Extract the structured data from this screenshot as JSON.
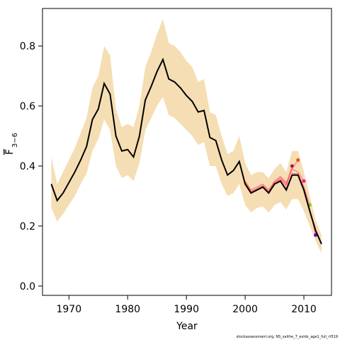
{
  "chart_data": {
    "type": "line",
    "xlabel": "Year",
    "ylabel_main": "F",
    "ylabel_sub": "3−6",
    "footnote": "stockassessment.org, NS_saithe_7_exidx_age1_full_rt519",
    "x": [
      1967,
      1968,
      1969,
      1970,
      1971,
      1972,
      1973,
      1974,
      1975,
      1976,
      1977,
      1978,
      1979,
      1980,
      1981,
      1982,
      1983,
      1984,
      1985,
      1986,
      1987,
      1988,
      1989,
      1990,
      1991,
      1992,
      1993,
      1994,
      1995,
      1996,
      1997,
      1998,
      1999,
      2000,
      2001,
      2002,
      2003,
      2004,
      2005,
      2006,
      2007,
      2008,
      2009,
      2010,
      2011,
      2012,
      2013
    ],
    "band_color": "#f5deb3",
    "band_upper": [
      0.43,
      0.34,
      0.38,
      0.42,
      0.46,
      0.51,
      0.56,
      0.66,
      0.7,
      0.8,
      0.77,
      0.59,
      0.53,
      0.54,
      0.53,
      0.6,
      0.73,
      0.78,
      0.84,
      0.89,
      0.81,
      0.8,
      0.78,
      0.75,
      0.73,
      0.68,
      0.69,
      0.58,
      0.57,
      0.5,
      0.44,
      0.45,
      0.5,
      0.41,
      0.37,
      0.38,
      0.38,
      0.36,
      0.39,
      0.41,
      0.38,
      0.45,
      0.45,
      0.38,
      0.3,
      0.22,
      0.17
    ],
    "band_lower": [
      0.26,
      0.215,
      0.24,
      0.27,
      0.3,
      0.34,
      0.375,
      0.45,
      0.49,
      0.555,
      0.52,
      0.4,
      0.36,
      0.37,
      0.35,
      0.41,
      0.52,
      0.56,
      0.6,
      0.63,
      0.57,
      0.56,
      0.54,
      0.52,
      0.5,
      0.47,
      0.48,
      0.4,
      0.4,
      0.34,
      0.3,
      0.31,
      0.34,
      0.27,
      0.245,
      0.26,
      0.265,
      0.245,
      0.27,
      0.28,
      0.255,
      0.29,
      0.29,
      0.25,
      0.2,
      0.15,
      0.11
    ],
    "series": [
      {
        "color": "#a0105a",
        "values": [
          null,
          null,
          null,
          null,
          null,
          null,
          null,
          null,
          null,
          null,
          null,
          null,
          null,
          null,
          null,
          null,
          null,
          null,
          null,
          null,
          null,
          null,
          null,
          null,
          null,
          null,
          null,
          null,
          null,
          null,
          null,
          null,
          null,
          0.345,
          0.315,
          0.325,
          0.335,
          0.315,
          0.345,
          0.36,
          0.34,
          0.4,
          null,
          null,
          null,
          null,
          null
        ]
      },
      {
        "color": "#ff4500",
        "values": [
          null,
          null,
          null,
          null,
          null,
          null,
          null,
          null,
          null,
          null,
          null,
          null,
          null,
          null,
          null,
          null,
          null,
          null,
          null,
          null,
          null,
          null,
          null,
          null,
          null,
          null,
          null,
          null,
          null,
          null,
          null,
          null,
          null,
          0.35,
          0.32,
          0.33,
          0.34,
          0.32,
          0.35,
          0.365,
          0.345,
          0.39,
          0.42,
          null,
          null,
          null,
          null
        ]
      },
      {
        "color": "#ff1493",
        "values": [
          null,
          null,
          null,
          null,
          null,
          null,
          null,
          null,
          null,
          null,
          null,
          null,
          null,
          null,
          null,
          null,
          null,
          null,
          null,
          null,
          null,
          null,
          null,
          null,
          null,
          null,
          null,
          null,
          null,
          null,
          null,
          null,
          null,
          0.345,
          0.315,
          0.325,
          0.335,
          0.315,
          0.345,
          0.355,
          0.335,
          0.39,
          0.38,
          0.35,
          null,
          null,
          null
        ]
      },
      {
        "color": "#7fd000",
        "values": [
          null,
          null,
          null,
          null,
          null,
          null,
          null,
          null,
          null,
          null,
          null,
          null,
          null,
          null,
          null,
          null,
          null,
          null,
          null,
          null,
          null,
          null,
          null,
          null,
          null,
          null,
          null,
          null,
          null,
          null,
          null,
          null,
          null,
          0.34,
          0.31,
          0.32,
          0.33,
          0.31,
          0.34,
          0.35,
          0.325,
          0.375,
          0.375,
          0.33,
          0.27,
          null,
          null
        ]
      },
      {
        "color": "#5a00c8",
        "values": [
          null,
          null,
          null,
          null,
          null,
          null,
          null,
          null,
          null,
          null,
          null,
          null,
          null,
          null,
          null,
          null,
          null,
          null,
          null,
          null,
          null,
          null,
          null,
          null,
          null,
          null,
          null,
          null,
          null,
          null,
          null,
          null,
          null,
          0.34,
          0.31,
          0.32,
          0.33,
          0.31,
          0.34,
          0.35,
          0.32,
          0.37,
          0.37,
          0.32,
          0.255,
          0.17,
          null
        ]
      },
      {
        "color": "#000000",
        "values": [
          0.34,
          0.285,
          0.31,
          0.345,
          0.38,
          0.42,
          0.465,
          0.555,
          0.59,
          0.675,
          0.64,
          0.5,
          0.45,
          0.455,
          0.43,
          0.5,
          0.62,
          0.665,
          0.715,
          0.755,
          0.69,
          0.68,
          0.66,
          0.635,
          0.615,
          0.58,
          0.585,
          0.495,
          0.485,
          0.42,
          0.37,
          0.385,
          0.415,
          0.34,
          0.31,
          0.32,
          0.33,
          0.31,
          0.34,
          0.35,
          0.32,
          0.37,
          0.37,
          0.32,
          0.25,
          0.185,
          0.14
        ]
      }
    ],
    "xlim": [
      1965.5,
      2014.7
    ],
    "ylim": [
      -0.031,
      0.925
    ],
    "xticks": [
      1970,
      1980,
      1990,
      2000,
      2010
    ],
    "yticks": [
      {
        "value": 0,
        "label": "0.0"
      },
      0.2,
      0.4,
      0.6,
      0.8
    ]
  }
}
